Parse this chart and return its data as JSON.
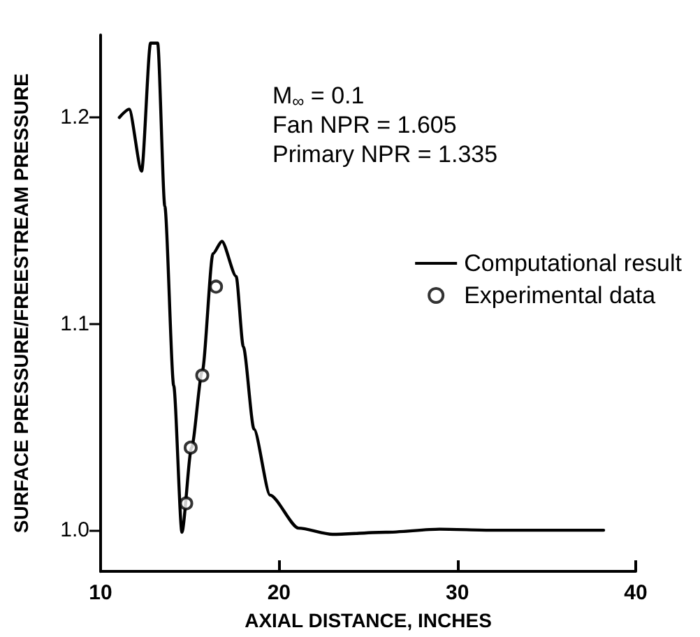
{
  "chart_data": {
    "type": "line",
    "xlabel": "AXIAL DISTANCE, INCHES",
    "ylabel": "SURFACE PRESSURE/FREESTREAM PRESSURE",
    "xlim": [
      10,
      40
    ],
    "xticks": [
      10,
      20,
      30,
      40
    ],
    "ylim": [
      0.98,
      1.24
    ],
    "yticks": [
      {
        "value": 1.0,
        "label": "1.0"
      },
      {
        "value": 1.1,
        "label": "1.1"
      },
      {
        "value": 1.2,
        "label": "1.2"
      }
    ],
    "grid": false,
    "legend": "right",
    "annotations": [
      "M$_{∞}$ = 0.1",
      "Fan NPR = 1.605",
      "Primary NPR = 1.335"
    ],
    "series": [
      {
        "name": "Computational result",
        "color": "#000000",
        "marker": "none",
        "line_style": "solid",
        "x": [
          11.05,
          11.6,
          12.3,
          12.8,
          13.2,
          13.6,
          14.1,
          14.56,
          15.1,
          15.7,
          16.3,
          16.8,
          17.6,
          18.0,
          18.6,
          19.5,
          21.1,
          23,
          26,
          29,
          32,
          38.2
        ],
        "values": [
          1.2,
          1.204,
          1.174,
          1.236,
          1.236,
          1.157,
          1.07,
          0.999,
          1.04,
          1.077,
          1.134,
          1.14,
          1.123,
          1.089,
          1.049,
          1.017,
          1.001,
          0.998,
          0.999,
          1.0005,
          1.0,
          1.0
        ]
      },
      {
        "name": "Experimental data",
        "type": "scatter",
        "color": "#000000",
        "marker": "circle",
        "x": [
          14.8,
          15.05,
          15.7,
          16.47
        ],
        "values": [
          1.013,
          1.04,
          1.075,
          1.118
        ]
      }
    ]
  }
}
